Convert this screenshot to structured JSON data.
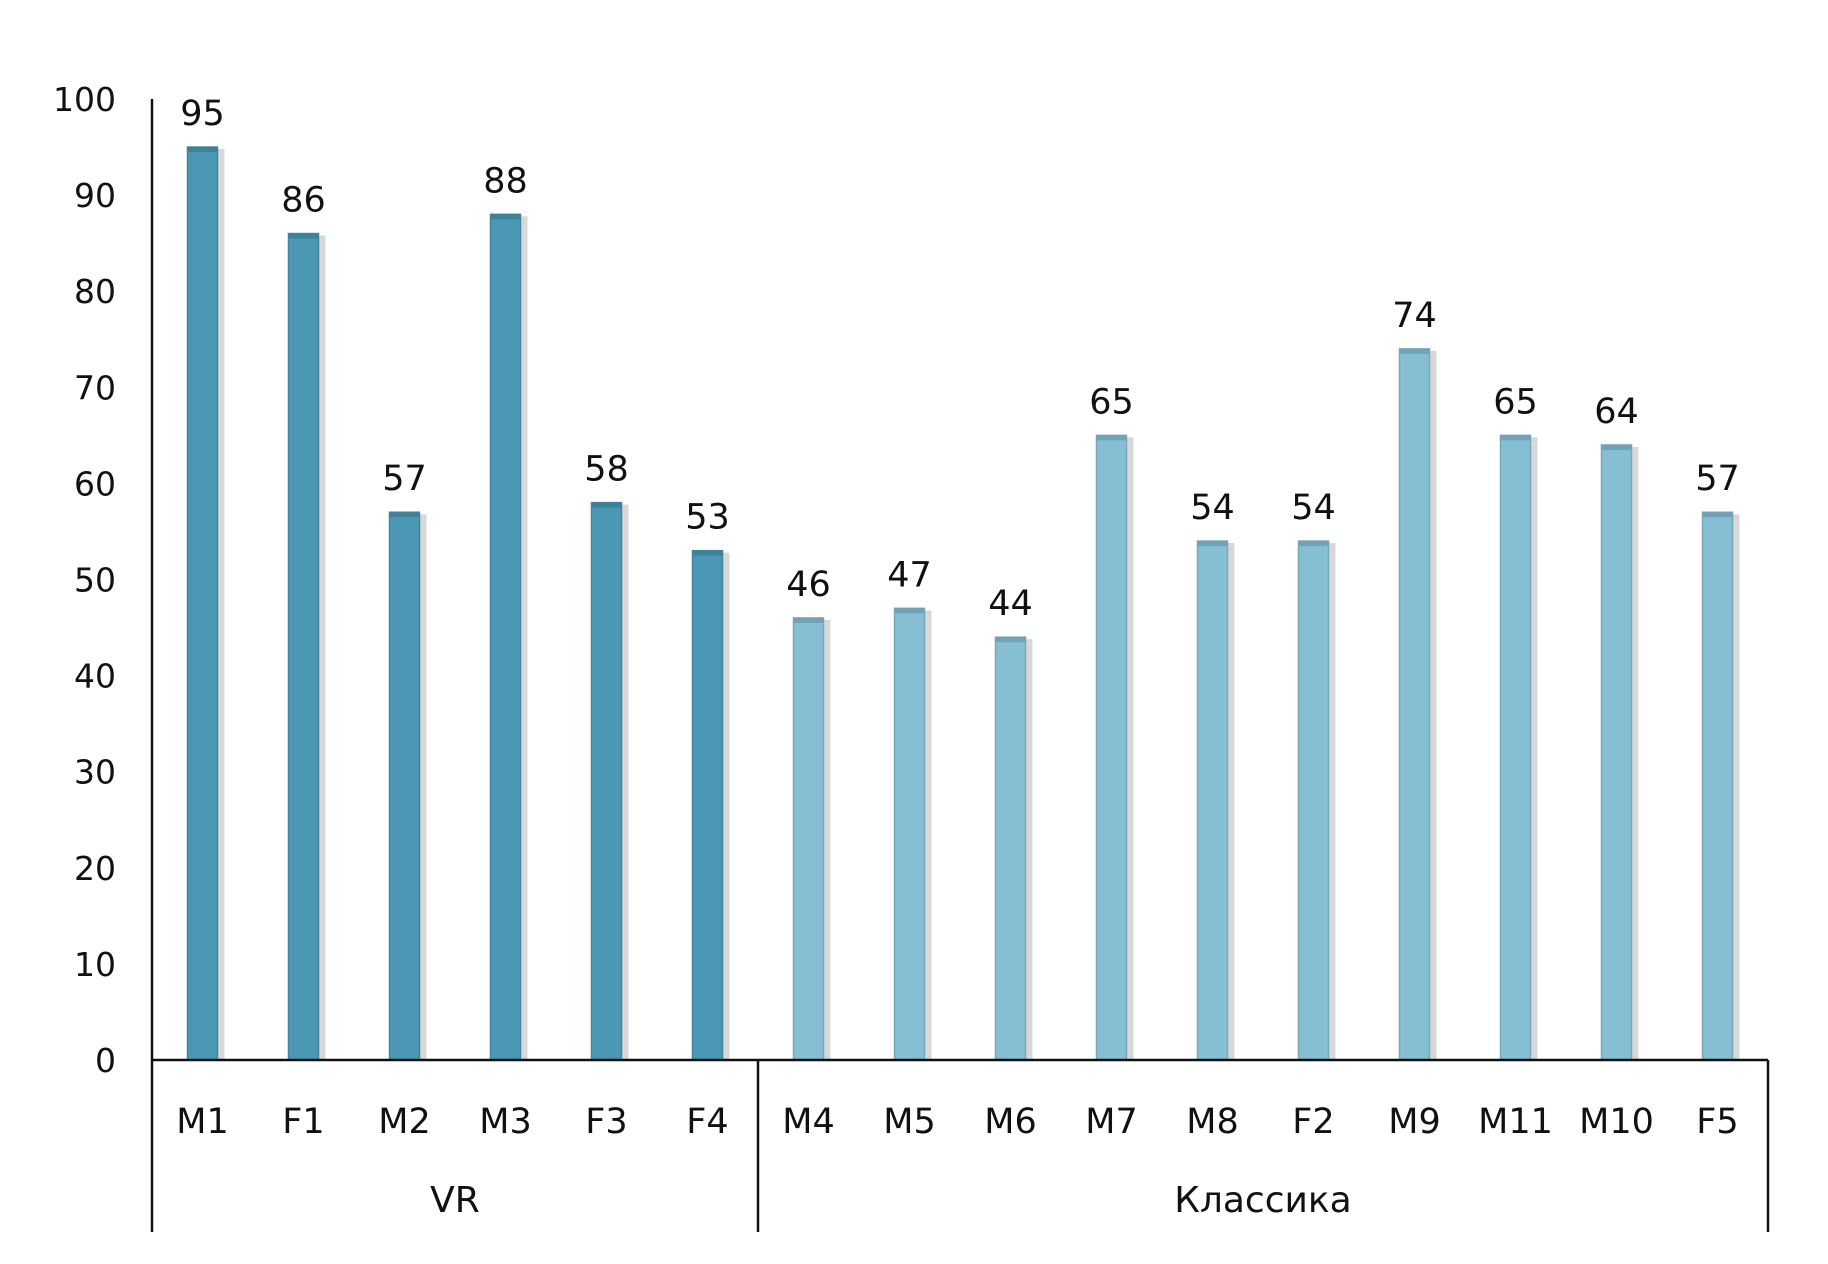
{
  "chart_data": {
    "type": "bar",
    "title": "",
    "xlabel": "",
    "ylabel": "",
    "ylim": [
      0,
      100
    ],
    "yticks": [
      0,
      10,
      20,
      30,
      40,
      50,
      60,
      70,
      80,
      90,
      100
    ],
    "grid": false,
    "legend": "none",
    "groups": [
      {
        "name": "VR",
        "color": "#4a98b3",
        "categories": [
          "M1",
          "F1",
          "M2",
          "M3",
          "F3",
          "F4"
        ],
        "values": [
          95,
          86,
          57,
          88,
          58,
          53
        ]
      },
      {
        "name": "Классика",
        "color": "#86bfd3",
        "categories": [
          "M4",
          "M5",
          "M6",
          "M7",
          "M8",
          "F2",
          "M9",
          "M11",
          "M10",
          "F5"
        ],
        "values": [
          46,
          47,
          44,
          65,
          54,
          54,
          74,
          65,
          64,
          57
        ]
      }
    ]
  }
}
